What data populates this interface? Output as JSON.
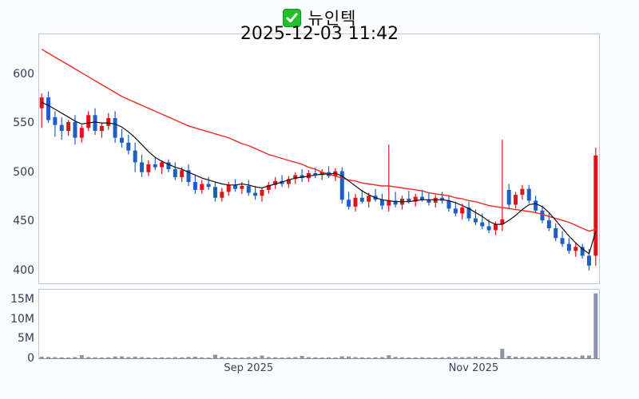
{
  "title": {
    "icon": "checkbox-checked",
    "text": "뉴인텍",
    "datetime": "2025-12-03 11:42"
  },
  "colors": {
    "up": "#e01318",
    "down": "#1d5fc4",
    "ma_fast": "#111111",
    "ma_slow": "#ee2a22",
    "volume": "#8b93ad",
    "check_green": "#23c129",
    "check_border": "#15941f",
    "tick_label": "#39445c"
  },
  "chart_data": {
    "type": "candlestick+volume",
    "title": "뉴인텍",
    "subtitle": "2025-12-03 11:42",
    "legend_position": "none",
    "grid": false,
    "price_axis": {
      "ticks": [
        600,
        550,
        500,
        450,
        400
      ],
      "visible_max": 641,
      "visible_min": 387
    },
    "volume_axis": {
      "unit": "millions",
      "ticks": [
        {
          "label": "15M",
          "value": 15
        },
        {
          "label": "10M",
          "value": 10
        },
        {
          "label": "5M",
          "value": 5
        },
        {
          "label": "0",
          "value": 0
        }
      ]
    },
    "x_ticks": [
      {
        "label": "Sep 2025",
        "index": 31.5
      },
      {
        "label": "Nov 2025",
        "index": 65.2
      }
    ],
    "candles": [
      [
        565,
        580,
        545,
        576
      ],
      [
        576,
        582,
        550,
        553
      ],
      [
        556,
        562,
        536,
        548
      ],
      [
        548,
        556,
        533,
        542
      ],
      [
        542,
        553,
        537,
        551
      ],
      [
        551,
        558,
        528,
        535
      ],
      [
        535,
        548,
        530,
        545
      ],
      [
        545,
        562,
        542,
        558
      ],
      [
        558,
        565,
        538,
        542
      ],
      [
        542,
        550,
        535,
        547
      ],
      [
        547,
        560,
        543,
        555
      ],
      [
        555,
        562,
        530,
        535
      ],
      [
        535,
        544,
        525,
        530
      ],
      [
        530,
        538,
        518,
        522
      ],
      [
        522,
        530,
        500,
        510
      ],
      [
        510,
        518,
        495,
        500
      ],
      [
        500,
        512,
        496,
        508
      ],
      [
        508,
        515,
        502,
        505
      ],
      [
        505,
        512,
        498,
        510
      ],
      [
        510,
        513,
        500,
        503
      ],
      [
        503,
        510,
        492,
        495
      ],
      [
        495,
        505,
        490,
        502
      ],
      [
        502,
        508,
        486,
        490
      ],
      [
        490,
        498,
        478,
        482
      ],
      [
        482,
        492,
        478,
        488
      ],
      [
        488,
        495,
        482,
        485
      ],
      [
        485,
        490,
        470,
        474
      ],
      [
        474,
        484,
        470,
        480
      ],
      [
        480,
        490,
        476,
        487
      ],
      [
        487,
        493,
        480,
        483
      ],
      [
        483,
        490,
        478,
        486
      ],
      [
        486,
        492,
        476,
        479
      ],
      [
        479,
        486,
        472,
        476
      ],
      [
        476,
        484,
        470,
        482
      ],
      [
        482,
        490,
        478,
        487
      ],
      [
        487,
        495,
        483,
        491
      ],
      [
        491,
        497,
        485,
        488
      ],
      [
        488,
        496,
        484,
        493
      ],
      [
        493,
        500,
        488,
        497
      ],
      [
        497,
        503,
        490,
        494
      ],
      [
        494,
        502,
        490,
        499
      ],
      [
        499,
        505,
        494,
        497
      ],
      [
        497,
        503,
        492,
        500
      ],
      [
        500,
        506,
        494,
        496
      ],
      [
        496,
        504,
        491,
        501
      ],
      [
        501,
        505,
        468,
        472
      ],
      [
        472,
        480,
        462,
        465
      ],
      [
        465,
        478,
        460,
        474
      ],
      [
        474,
        482,
        468,
        470
      ],
      [
        470,
        479,
        464,
        476
      ],
      [
        476,
        483,
        470,
        472
      ],
      [
        472,
        478,
        462,
        466
      ],
      [
        466,
        528,
        460,
        471
      ],
      [
        471,
        480,
        464,
        467
      ],
      [
        467,
        476,
        462,
        473
      ],
      [
        473,
        481,
        468,
        470
      ],
      [
        470,
        478,
        465,
        475
      ],
      [
        475,
        482,
        470,
        472
      ],
      [
        472,
        479,
        466,
        469
      ],
      [
        469,
        477,
        464,
        474
      ],
      [
        474,
        480,
        468,
        471
      ],
      [
        471,
        476,
        460,
        463
      ],
      [
        463,
        470,
        455,
        458
      ],
      [
        458,
        468,
        452,
        464
      ],
      [
        464,
        470,
        450,
        453
      ],
      [
        453,
        462,
        446,
        449
      ],
      [
        449,
        458,
        442,
        445
      ],
      [
        445,
        452,
        438,
        441
      ],
      [
        441,
        450,
        436,
        447
      ],
      [
        447,
        533,
        440,
        452
      ],
      [
        482,
        488,
        462,
        467
      ],
      [
        467,
        480,
        463,
        477
      ],
      [
        477,
        487,
        472,
        483
      ],
      [
        483,
        487,
        468,
        471
      ],
      [
        471,
        476,
        458,
        461
      ],
      [
        461,
        466,
        448,
        451
      ],
      [
        451,
        458,
        440,
        443
      ],
      [
        443,
        448,
        430,
        433
      ],
      [
        433,
        440,
        424,
        427
      ],
      [
        427,
        433,
        417,
        420
      ],
      [
        420,
        428,
        414,
        424
      ],
      [
        424,
        427,
        412,
        415
      ],
      [
        415,
        422,
        400,
        405
      ],
      [
        415,
        525,
        405,
        517
      ]
    ],
    "volumes_m": [
      0.4,
      0.35,
      0.3,
      0.25,
      0.2,
      0.3,
      0.8,
      0.3,
      0.25,
      0.2,
      0.25,
      0.45,
      0.5,
      0.3,
      0.4,
      0.3,
      0.2,
      0.2,
      0.25,
      0.2,
      0.3,
      0.25,
      0.35,
      0.4,
      0.25,
      0.2,
      0.9,
      0.35,
      0.25,
      0.2,
      0.2,
      0.3,
      0.35,
      0.7,
      0.3,
      0.25,
      0.2,
      0.25,
      0.3,
      0.6,
      0.3,
      0.25,
      0.2,
      0.25,
      0.2,
      0.5,
      0.45,
      0.3,
      0.25,
      0.2,
      0.25,
      0.3,
      0.8,
      0.35,
      0.25,
      0.2,
      0.2,
      0.25,
      0.2,
      0.2,
      0.25,
      0.3,
      0.35,
      0.3,
      0.35,
      0.4,
      0.35,
      0.3,
      0.25,
      2.4,
      0.6,
      0.4,
      0.35,
      0.3,
      0.35,
      0.45,
      0.4,
      0.35,
      0.4,
      0.35,
      0.3,
      0.7,
      0.7,
      16.5
    ],
    "ma_fast": [
      571,
      568,
      564,
      560,
      556,
      552,
      549,
      550,
      551,
      550,
      550,
      549,
      546,
      541,
      535,
      528,
      521,
      515,
      511,
      508,
      505,
      503,
      500,
      497,
      494,
      492,
      490,
      488,
      487,
      487,
      488,
      487,
      485,
      484,
      486,
      488,
      490,
      492,
      494,
      495,
      496,
      497,
      498,
      498,
      499,
      496,
      491,
      486,
      481,
      477,
      474,
      472,
      471,
      470,
      470,
      470,
      471,
      472,
      472,
      472,
      472,
      471,
      469,
      466,
      463,
      459,
      455,
      450,
      447,
      447,
      451,
      456,
      462,
      467,
      468,
      465,
      459,
      451,
      443,
      435,
      428,
      422,
      417,
      440
    ],
    "ma_slow": [
      625,
      621,
      617,
      613,
      609,
      605,
      601,
      597,
      593,
      589,
      585,
      581,
      577,
      574,
      571,
      568,
      565,
      562,
      559,
      556,
      553,
      550,
      547,
      545,
      543,
      541,
      539,
      537,
      535,
      532,
      529,
      527,
      524,
      521,
      518,
      516,
      514,
      512,
      510,
      508,
      505,
      503,
      500,
      498,
      496,
      494,
      492,
      491,
      489,
      488,
      487,
      486,
      486,
      485,
      484,
      483,
      482,
      481,
      479,
      478,
      477,
      476,
      474,
      473,
      471,
      470,
      468,
      466,
      465,
      464,
      463,
      462,
      461,
      460,
      459,
      457,
      455,
      453,
      451,
      449,
      446,
      443,
      440,
      442
    ]
  }
}
